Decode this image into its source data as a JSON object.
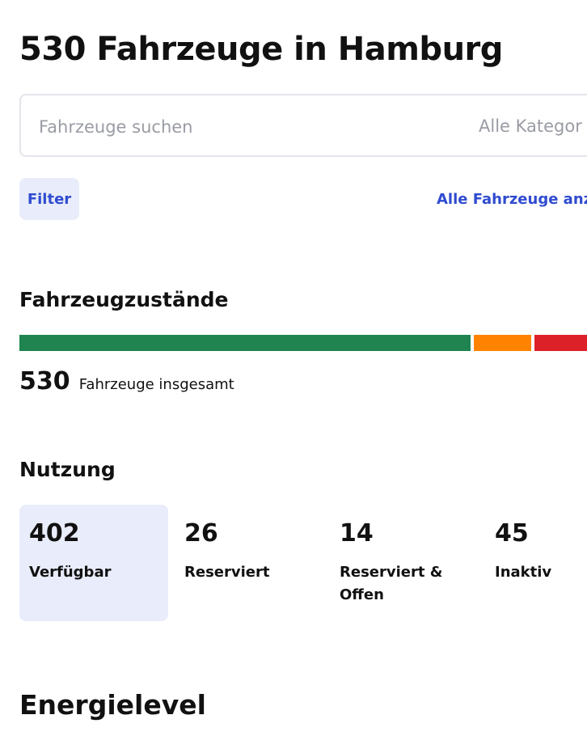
{
  "page_title": "530 Fahrzeuge in Hamburg",
  "search": {
    "placeholder": "Fahrzeuge suchen",
    "category_value": "Alle Kategor"
  },
  "toolbar": {
    "filter_label": "Filter",
    "show_all_label": "Alle Fahrzeuge anze"
  },
  "status_section": {
    "heading": "Fahrzeugzustände",
    "bar_segments": [
      {
        "name": "green",
        "color": "#1f8450",
        "fraction": 0.78
      },
      {
        "name": "orange",
        "color": "#ff8300",
        "fraction": 0.105
      },
      {
        "name": "red",
        "color": "#dd2128",
        "fraction": 0.115
      }
    ],
    "total_number": "530",
    "total_label": "Fahrzeuge insgesamt"
  },
  "usage_section": {
    "heading": "Nutzung",
    "cards": [
      {
        "value": "402",
        "label": "Verfügbar",
        "selected": true
      },
      {
        "value": "26",
        "label": "Reserviert",
        "selected": false
      },
      {
        "value": "14",
        "label": "Reserviert & Offen",
        "selected": false
      },
      {
        "value": "45",
        "label": "Inaktiv",
        "selected": false
      }
    ]
  },
  "energy_section": {
    "heading": "Energielevel"
  },
  "colors": {
    "accent": "#2f4bd0",
    "accent_bg": "#e9ecfa"
  }
}
